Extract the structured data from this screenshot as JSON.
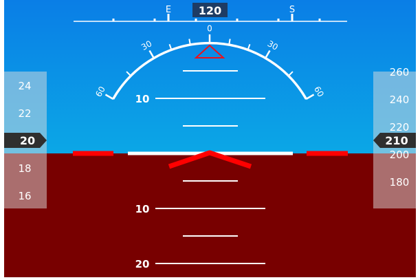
{
  "colors": {
    "sky_top": "#0a7ee6",
    "sky_bottom": "#0ba7e6",
    "ground": "#780000",
    "horizon": "#ffffff",
    "marker": "#ff0000",
    "tape_bg": "#dcdcdc",
    "readout_bg": "#2f2f2f",
    "heading_box": "#1e3c64"
  },
  "heading": {
    "value": "120",
    "labels": [
      {
        "text": "E",
        "deg": 90
      },
      {
        "text": "S",
        "deg": 180
      }
    ]
  },
  "bank_scale": {
    "labels": [
      {
        "text": "0",
        "deg": 0
      },
      {
        "text": "30",
        "deg": -30
      },
      {
        "text": "30",
        "deg": 30
      },
      {
        "text": "60",
        "deg": -60
      },
      {
        "text": "60",
        "deg": 60
      }
    ]
  },
  "pitch_ladder": {
    "labels": [
      {
        "text": "10",
        "pitch": 10
      },
      {
        "text": "10",
        "pitch": -10
      },
      {
        "text": "20",
        "pitch": -20
      }
    ]
  },
  "speed_tape": {
    "current": "20",
    "ticks": [
      "24",
      "22",
      "18",
      "16"
    ]
  },
  "altitude_tape": {
    "current": "210",
    "ticks": [
      "260",
      "240",
      "220",
      "200",
      "180"
    ]
  }
}
